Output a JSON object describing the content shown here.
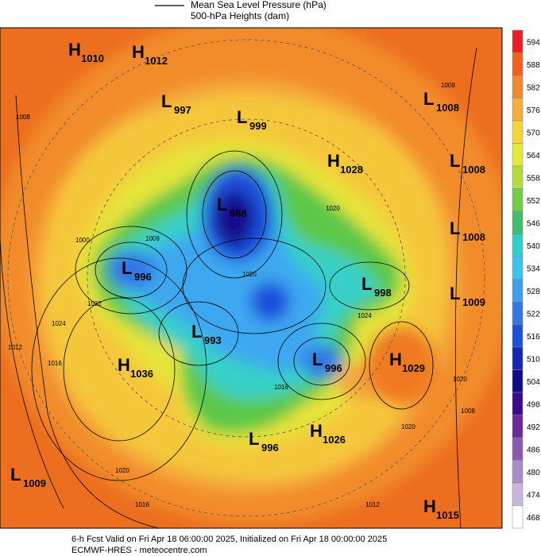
{
  "legend": {
    "line1": "Mean Sea Level Pressure (hPa)",
    "line2": "500-hPa Heights (dam)"
  },
  "centers": [
    {
      "type": "H",
      "value": "1010"
    },
    {
      "type": "H",
      "value": "1012"
    },
    {
      "type": "L",
      "value": "997"
    },
    {
      "type": "L",
      "value": "999"
    },
    {
      "type": "L",
      "value": "1008"
    },
    {
      "type": "H",
      "value": "1028"
    },
    {
      "type": "L",
      "value": "1008"
    },
    {
      "type": "L",
      "value": "988"
    },
    {
      "type": "L",
      "value": "1008"
    },
    {
      "type": "L",
      "value": "996"
    },
    {
      "type": "L",
      "value": "998"
    },
    {
      "type": "L",
      "value": "1009"
    },
    {
      "type": "L",
      "value": "993"
    },
    {
      "type": "L",
      "value": "996"
    },
    {
      "type": "H",
      "value": "1029"
    },
    {
      "type": "H",
      "value": "1036"
    },
    {
      "type": "H",
      "value": "1026"
    },
    {
      "type": "L",
      "value": "996"
    },
    {
      "type": "L",
      "value": "1009"
    },
    {
      "type": "H",
      "value": "1015"
    }
  ],
  "isobar_labels": [
    "1008",
    "1020",
    "1008",
    "1020",
    "1024",
    "1016",
    "1020",
    "1032",
    "1024",
    "1012",
    "1016",
    "1020",
    "1016",
    "1012",
    "1008",
    "1020",
    "1000",
    "1008"
  ],
  "colorbar": {
    "ticks": [
      594,
      588,
      582,
      576,
      570,
      564,
      558,
      552,
      546,
      540,
      534,
      528,
      522,
      516,
      510,
      504,
      498,
      492,
      486,
      480,
      474,
      468
    ],
    "colors": [
      "#ee1c24",
      "#f2601a",
      "#f5862e",
      "#f5ae3a",
      "#f5d43a",
      "#e6e83a",
      "#b4dc3c",
      "#74cc44",
      "#3cbf6e",
      "#30d0c8",
      "#3cc4f0",
      "#3ca0f0",
      "#3278e6",
      "#1e50dc",
      "#1428b4",
      "#140a8c",
      "#3c0a8c",
      "#6a2a9c",
      "#8c5ab4",
      "#a88cc8",
      "#c8b4dc",
      "#ffffff"
    ]
  },
  "footer": {
    "line1": "6-h Fcst Valid on Fri Apr 18 06:00:00 2025, Initialized on Fri Apr 18 00:00:00 2025",
    "line2": "ECMWF-HRES - meteocentre.com"
  }
}
